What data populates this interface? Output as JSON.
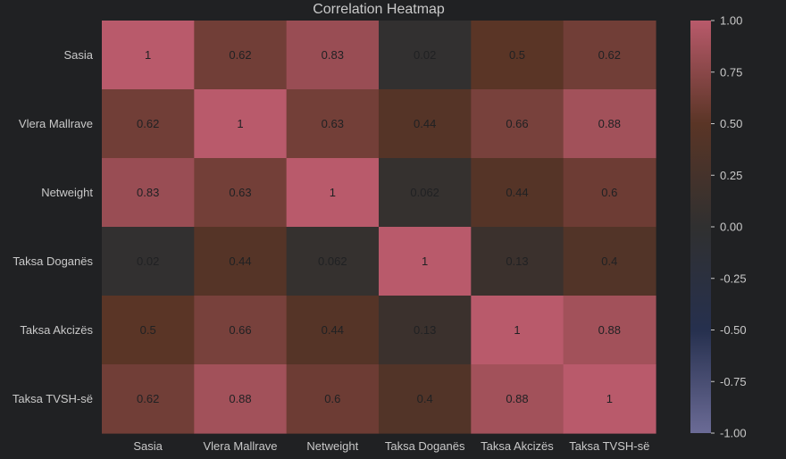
{
  "chart_data": {
    "type": "heatmap",
    "title": "Correlation Heatmap",
    "xlabel": "",
    "ylabel": "",
    "x_categories": [
      "Sasia",
      "Vlera Mallrave",
      "Netweight",
      "Taksa Doganës",
      "Taksa Akcizës",
      "Taksa TVSH-së"
    ],
    "y_categories": [
      "Sasia",
      "Vlera Mallrave",
      "Netweight",
      "Taksa Doganës",
      "Taksa Akcizës",
      "Taksa TVSH-së"
    ],
    "values": [
      [
        1,
        0.62,
        0.83,
        0.02,
        0.5,
        0.62
      ],
      [
        0.62,
        1,
        0.63,
        0.44,
        0.66,
        0.88
      ],
      [
        0.83,
        0.63,
        1,
        0.062,
        0.44,
        0.6
      ],
      [
        0.02,
        0.44,
        0.062,
        1,
        0.13,
        0.4
      ],
      [
        0.5,
        0.66,
        0.44,
        0.13,
        1,
        0.88
      ],
      [
        0.62,
        0.88,
        0.6,
        0.4,
        0.88,
        1
      ]
    ],
    "value_labels": [
      [
        "1",
        "0.62",
        "0.83",
        "0.02",
        "0.5",
        "0.62"
      ],
      [
        "0.62",
        "1",
        "0.63",
        "0.44",
        "0.66",
        "0.88"
      ],
      [
        "0.83",
        "0.63",
        "1",
        "0.062",
        "0.44",
        "0.6"
      ],
      [
        "0.02",
        "0.44",
        "0.062",
        "1",
        "0.13",
        "0.4"
      ],
      [
        "0.5",
        "0.66",
        "0.44",
        "0.13",
        "1",
        "0.88"
      ],
      [
        "0.62",
        "0.88",
        "0.6",
        "0.4",
        "0.88",
        "1"
      ]
    ],
    "color_range": [
      -1,
      1
    ],
    "colorbar_ticks": [
      "1.00",
      "0.75",
      "0.50",
      "0.25",
      "0.00",
      "-0.25",
      "-0.50",
      "-0.75",
      "-1.00"
    ],
    "colorbar_tick_values": [
      1,
      0.75,
      0.5,
      0.25,
      0,
      -0.25,
      -0.5,
      -0.75,
      -1
    ],
    "colormap": {
      "low": "#6b6b96",
      "mid_low": "#26304e",
      "mid": "#303030",
      "mid_high": "#5a3526",
      "high": "#b95a6b"
    },
    "background_color": "#202123",
    "text_color": "#c9c9c9",
    "annotation_color": "#202123"
  }
}
